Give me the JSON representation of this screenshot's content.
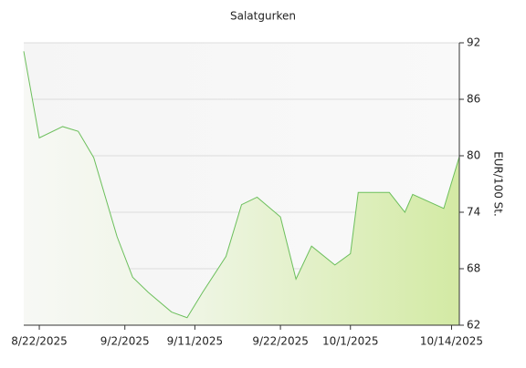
{
  "chart_data": {
    "type": "area",
    "title": "Salatgurken",
    "y_label": "EUR/100 St.",
    "x": [
      "8/20/2025",
      "8/22/2025",
      "8/25/2025",
      "8/27/2025",
      "8/29/2025",
      "9/1/2025",
      "9/3/2025",
      "9/5/2025",
      "9/8/2025",
      "9/10/2025",
      "9/12/2025",
      "9/15/2025",
      "9/17/2025",
      "9/19/2025",
      "9/22/2025",
      "9/24/2025",
      "9/26/2025",
      "9/29/2025",
      "10/1/2025",
      "10/2/2025",
      "10/6/2025",
      "10/8/2025",
      "10/9/2025",
      "10/13/2025",
      "10/15/2025"
    ],
    "series": [
      {
        "name": "Salatgurken",
        "color": "#6cbf5c",
        "values": [
          91.1,
          81.9,
          83.1,
          82.6,
          79.8,
          71.4,
          67.1,
          65.5,
          63.4,
          62.8,
          65.5,
          69.3,
          74.8,
          75.6,
          73.5,
          66.9,
          70.4,
          68.4,
          69.6,
          76.1,
          76.1,
          74.0,
          75.9,
          74.4,
          79.9
        ]
      }
    ],
    "xticks": [
      "8/22/2025",
      "9/2/2025",
      "9/11/2025",
      "9/22/2025",
      "10/1/2025",
      "10/14/2025"
    ],
    "ylim": [
      62,
      92
    ],
    "yticks": [
      62,
      68,
      74,
      80,
      86,
      92
    ],
    "grid": true
  }
}
